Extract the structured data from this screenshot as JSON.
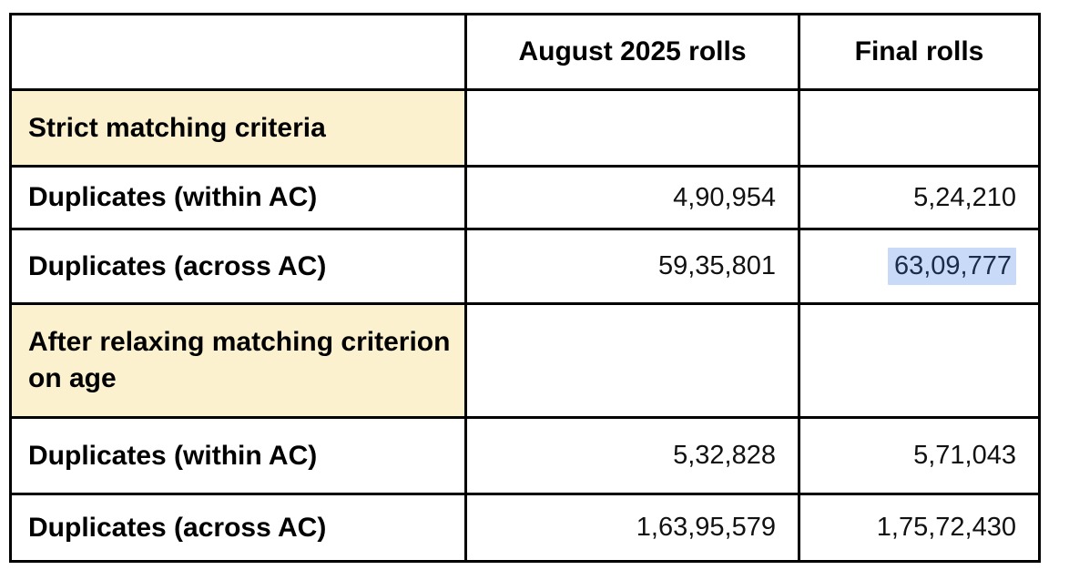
{
  "table": {
    "columns": [
      {
        "label": ""
      },
      {
        "label": "August 2025 rolls"
      },
      {
        "label": "Final rolls"
      }
    ],
    "rows": [
      {
        "type": "section",
        "label": "Strict matching criteria",
        "values": [
          "",
          ""
        ]
      },
      {
        "type": "data",
        "label": "Duplicates (within AC)",
        "values": [
          "4,90,954",
          "5,24,210"
        ]
      },
      {
        "type": "data",
        "label": "Duplicates (across AC)",
        "values": [
          "59,35,801",
          "63,09,777"
        ],
        "highlighted_value_column": 1
      },
      {
        "type": "section",
        "label": "After relaxing matching criterion on age",
        "values": [
          "",
          ""
        ]
      },
      {
        "type": "data",
        "label": "Duplicates (within AC)",
        "values": [
          "5,32,828",
          "5,71,043"
        ]
      },
      {
        "type": "data",
        "label": "Duplicates (across AC)",
        "values": [
          "1,63,95,579",
          "1,75,72,430"
        ]
      }
    ],
    "colors": {
      "section_background": "#fcf1ce",
      "highlight_background": "#c9daf8",
      "highlight_text": "#1b2b4c",
      "border": "#000000",
      "label_text": "#000000",
      "number_text": "#111111"
    }
  }
}
